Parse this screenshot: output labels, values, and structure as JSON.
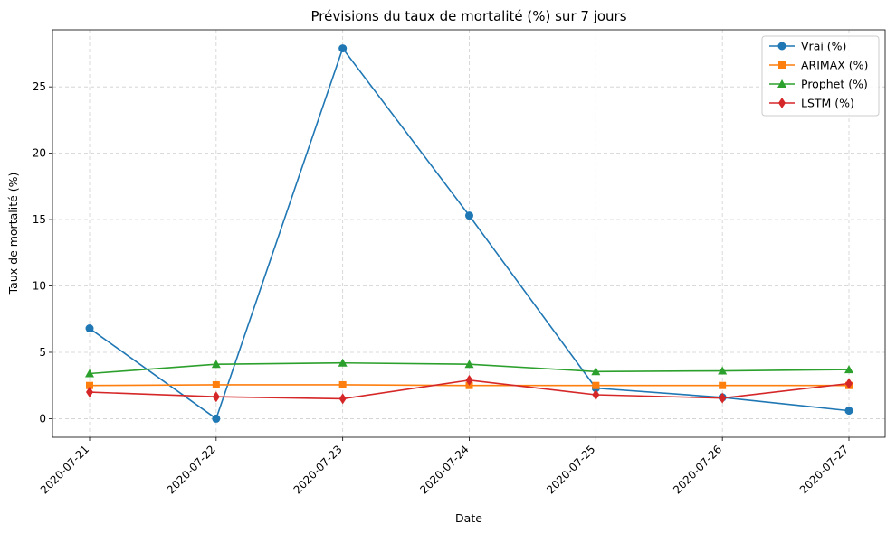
{
  "chart_data": {
    "type": "line",
    "title": "Prévisions du taux de mortalité (%) sur 7 jours",
    "xlabel": "Date",
    "ylabel": "Taux de mortalité (%)",
    "categories": [
      "2020-07-21",
      "2020-07-22",
      "2020-07-23",
      "2020-07-24",
      "2020-07-25",
      "2020-07-26",
      "2020-07-27"
    ],
    "ylim": [
      -1.4,
      29.3
    ],
    "yticks": [
      0,
      5,
      10,
      15,
      20,
      25
    ],
    "grid": true,
    "legend_position": "top-right",
    "series": [
      {
        "name": "Vrai (%)",
        "color": "#1f77b4",
        "marker": "circle",
        "values": [
          6.8,
          0.0,
          27.9,
          15.3,
          2.3,
          1.6,
          0.6
        ]
      },
      {
        "name": "ARIMAX (%)",
        "color": "#ff7f0e",
        "marker": "square",
        "values": [
          2.5,
          2.55,
          2.55,
          2.5,
          2.5,
          2.5,
          2.5
        ]
      },
      {
        "name": "Prophet (%)",
        "color": "#2ca02c",
        "marker": "triangle",
        "values": [
          3.4,
          4.1,
          4.2,
          4.1,
          3.55,
          3.6,
          3.7
        ]
      },
      {
        "name": "LSTM (%)",
        "color": "#d62728",
        "marker": "diamond",
        "values": [
          2.0,
          1.65,
          1.5,
          2.9,
          1.8,
          1.55,
          2.65
        ]
      }
    ]
  }
}
